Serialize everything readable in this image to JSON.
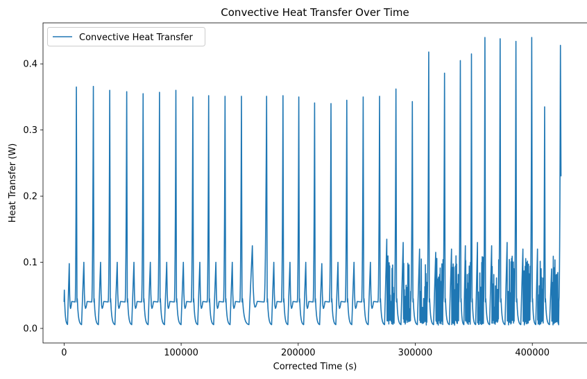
{
  "chart_data": {
    "type": "line",
    "title": "Convective Heat Transfer Over Time",
    "xlabel": "Corrected Time (s)",
    "ylabel": "Heat Transfer (W)",
    "xlim": [
      -18000,
      447000
    ],
    "ylim": [
      -0.022,
      0.462
    ],
    "xticks": [
      0,
      100000,
      200000,
      300000,
      400000
    ],
    "xtick_labels": [
      "0",
      "100000",
      "200000",
      "300000",
      "400000"
    ],
    "yticks": [
      0.0,
      0.1,
      0.2,
      0.3,
      0.4
    ],
    "ytick_labels": [
      "0.0",
      "0.1",
      "0.2",
      "0.3",
      "0.4"
    ],
    "grid": false,
    "legend_position": "top-left",
    "series": [
      {
        "name": "Convective Heat Transfer",
        "color": "#1f77b4",
        "cycles": [
          {
            "start": 0,
            "peak": 10500,
            "peak_value": 0.365,
            "secondary_value": 0.098
          },
          {
            "start": 11000,
            "peak": 25000,
            "peak_value": 0.366,
            "secondary_value": 0.1
          },
          {
            "start": 25500,
            "peak": 39000,
            "peak_value": 0.36,
            "secondary_value": 0.1
          },
          {
            "start": 39500,
            "peak": 53500,
            "peak_value": 0.358,
            "secondary_value": 0.1
          },
          {
            "start": 54000,
            "peak": 67500,
            "peak_value": 0.355,
            "secondary_value": 0.1
          },
          {
            "start": 68000,
            "peak": 81500,
            "peak_value": 0.357,
            "secondary_value": 0.1
          },
          {
            "start": 82000,
            "peak": 95500,
            "peak_value": 0.36,
            "secondary_value": 0.1
          },
          {
            "start": 96000,
            "peak": 110000,
            "peak_value": 0.35,
            "secondary_value": 0.1
          },
          {
            "start": 110500,
            "peak": 123500,
            "peak_value": 0.352,
            "secondary_value": 0.1
          },
          {
            "start": 124000,
            "peak": 137500,
            "peak_value": 0.351,
            "secondary_value": 0.1
          },
          {
            "start": 138000,
            "peak": 151500,
            "peak_value": 0.351,
            "secondary_value": 0.1
          },
          {
            "start": 152000,
            "peak": 173000,
            "peak_value": 0.351,
            "secondary_value": 0.125
          },
          {
            "start": 173500,
            "peak": 187000,
            "peak_value": 0.352,
            "secondary_value": 0.1
          },
          {
            "start": 187500,
            "peak": 200500,
            "peak_value": 0.35,
            "secondary_value": 0.1
          },
          {
            "start": 201000,
            "peak": 214000,
            "peak_value": 0.341,
            "secondary_value": 0.1
          },
          {
            "start": 214500,
            "peak": 228000,
            "peak_value": 0.34,
            "secondary_value": 0.098
          },
          {
            "start": 228500,
            "peak": 241500,
            "peak_value": 0.345,
            "secondary_value": 0.1
          },
          {
            "start": 242000,
            "peak": 255500,
            "peak_value": 0.35,
            "secondary_value": 0.1
          },
          {
            "start": 256000,
            "peak": 269500,
            "peak_value": 0.351,
            "secondary_value": 0.1
          },
          {
            "start": 270000,
            "peak": 283500,
            "peak_value": 0.362,
            "secondary_value": 0.135
          },
          {
            "start": 284000,
            "peak": 297500,
            "peak_value": 0.343,
            "secondary_value": 0.13
          },
          {
            "start": 298000,
            "peak": 311500,
            "peak_value": 0.418,
            "secondary_value": 0.12
          },
          {
            "start": 312000,
            "peak": 325000,
            "peak_value": 0.386,
            "secondary_value": 0.115
          },
          {
            "start": 325500,
            "peak": 338500,
            "peak_value": 0.405,
            "secondary_value": 0.12
          },
          {
            "start": 339000,
            "peak": 348000,
            "peak_value": 0.415,
            "secondary_value": 0.125
          },
          {
            "start": 348500,
            "peak": 359500,
            "peak_value": 0.44,
            "secondary_value": 0.13
          },
          {
            "start": 360000,
            "peak": 372500,
            "peak_value": 0.438,
            "secondary_value": 0.125
          },
          {
            "start": 373000,
            "peak": 386000,
            "peak_value": 0.434,
            "secondary_value": 0.13
          },
          {
            "start": 386500,
            "peak": 399500,
            "peak_value": 0.44,
            "secondary_value": 0.12
          },
          {
            "start": 400000,
            "peak": 410500,
            "peak_value": 0.335,
            "secondary_value": 0.12
          },
          {
            "start": 411000,
            "peak": 424000,
            "peak_value": 0.428,
            "secondary_value": 0.09
          }
        ],
        "extra_spikes": [
          {
            "x": 271000,
            "value": 0.365
          },
          {
            "x": 399000,
            "value": 0.44
          },
          {
            "x": 412500,
            "value": 0.35
          }
        ],
        "end_value": 0.23,
        "baseline_value": 0.005,
        "noisy_from": 270000
      }
    ]
  }
}
